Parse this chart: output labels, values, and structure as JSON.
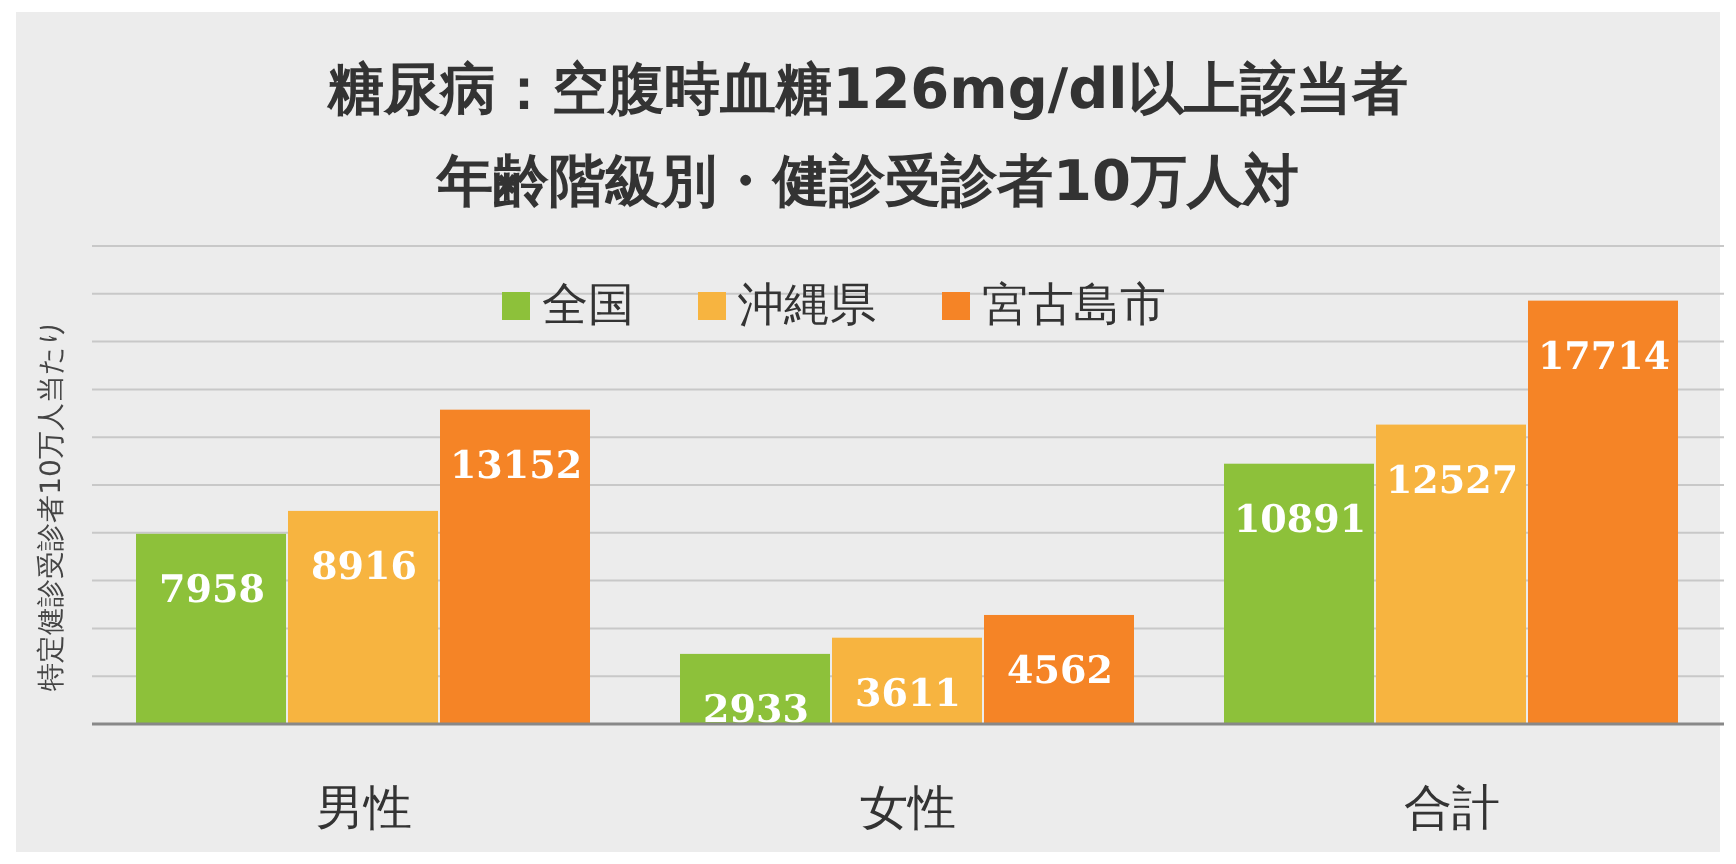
{
  "chart_data": {
    "type": "bar",
    "title": "糖尿病：空腹時血糖126mg/dl以上該当者",
    "subtitle": "年齢階級別・健診受診者10万人対",
    "ylabel": "特定健診受診者10万人当たり",
    "categories": [
      "男性",
      "女性",
      "合計"
    ],
    "series": [
      {
        "name": "全国",
        "color": "#8dc13a",
        "values": [
          7958,
          2933,
          10891
        ]
      },
      {
        "name": "沖縄県",
        "color": "#f7b440",
        "values": [
          8916,
          3611,
          12527
        ]
      },
      {
        "name": "宮古島市",
        "color": "#f58426",
        "values": [
          13152,
          4562,
          17714
        ]
      }
    ],
    "ylim": [
      0,
      20000
    ],
    "yticks": [
      {
        "value": 0,
        "label": null
      },
      {
        "value": 2000,
        "label": null
      },
      {
        "value": 4000,
        "label": null
      },
      {
        "value": 6000,
        "label": null
      },
      {
        "value": 8000,
        "label": null
      },
      {
        "value": 10000,
        "label": null
      },
      {
        "value": 12000,
        "label": null
      },
      {
        "value": 14000,
        "label": null
      },
      {
        "value": 16000,
        "label": null
      },
      {
        "value": 18000,
        "label": null
      },
      {
        "value": 20000,
        "label": null
      }
    ],
    "tick_labels": "x",
    "grid": "y",
    "legend": "top",
    "data_labels": true
  }
}
